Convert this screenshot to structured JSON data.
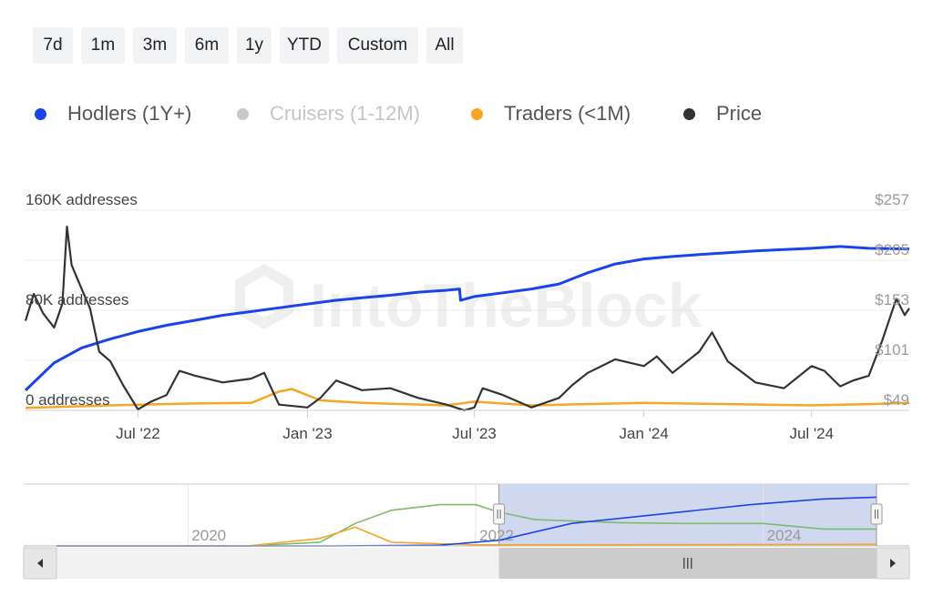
{
  "range_buttons": [
    "7d",
    "1m",
    "3m",
    "6m",
    "1y",
    "YTD",
    "Custom",
    "All"
  ],
  "legend": [
    {
      "label": "Hodlers (1Y+)",
      "color": "#1a44e8",
      "dim": false
    },
    {
      "label": "Cruisers (1-12M)",
      "color": "#c8c8c8",
      "dim": true
    },
    {
      "label": "Traders (<1M)",
      "color": "#f5a623",
      "dim": false
    },
    {
      "label": "Price",
      "color": "#333333",
      "dim": false
    }
  ],
  "watermark": "IntoTheBlock",
  "chart_data": {
    "type": "line",
    "x_ticks": [
      "Jul '22",
      "Jan '23",
      "Jul '23",
      "Jan '24",
      "Jul '24"
    ],
    "y_left_ticks": [
      "160K addresses",
      "80K addresses",
      "0 addresses"
    ],
    "y_right_ticks": [
      "$257",
      "$205",
      "$153",
      "$101",
      "$49"
    ],
    "y_left_range": [
      0,
      160000
    ],
    "y_right_range": [
      49,
      257
    ],
    "x_range": [
      "2022-03-01",
      "2024-10-15"
    ],
    "series": [
      {
        "name": "Hodlers (1Y+)",
        "axis": "left",
        "color": "#1a44e8",
        "points": [
          [
            "2022-03-01",
            16000
          ],
          [
            "2022-04-01",
            38000
          ],
          [
            "2022-05-01",
            50000
          ],
          [
            "2022-06-01",
            57000
          ],
          [
            "2022-07-01",
            63000
          ],
          [
            "2022-08-01",
            68000
          ],
          [
            "2022-09-01",
            72000
          ],
          [
            "2022-10-01",
            76000
          ],
          [
            "2022-11-01",
            79000
          ],
          [
            "2022-12-01",
            82000
          ],
          [
            "2023-01-01",
            85000
          ],
          [
            "2023-02-01",
            88000
          ],
          [
            "2023-03-01",
            90000
          ],
          [
            "2023-04-01",
            92000
          ],
          [
            "2023-05-01",
            94500
          ],
          [
            "2023-06-01",
            96000
          ],
          [
            "2023-06-15",
            97000
          ],
          [
            "2023-06-16",
            88000
          ],
          [
            "2023-07-01",
            91000
          ],
          [
            "2023-08-01",
            94000
          ],
          [
            "2023-09-01",
            97000
          ],
          [
            "2023-10-01",
            101000
          ],
          [
            "2023-11-01",
            110000
          ],
          [
            "2023-12-01",
            117000
          ],
          [
            "2024-01-01",
            121000
          ],
          [
            "2024-02-01",
            123000
          ],
          [
            "2024-03-01",
            124500
          ],
          [
            "2024-04-01",
            126000
          ],
          [
            "2024-05-01",
            127500
          ],
          [
            "2024-06-01",
            128500
          ],
          [
            "2024-07-01",
            129500
          ],
          [
            "2024-08-01",
            131000
          ],
          [
            "2024-09-01",
            129500
          ],
          [
            "2024-10-15",
            129000
          ]
        ]
      },
      {
        "name": "Traders (<1M)",
        "axis": "left",
        "color": "#f5a623",
        "points": [
          [
            "2022-03-01",
            2000
          ],
          [
            "2022-06-01",
            4000
          ],
          [
            "2022-09-01",
            5500
          ],
          [
            "2022-11-01",
            6000
          ],
          [
            "2022-12-01",
            15000
          ],
          [
            "2022-12-15",
            17000
          ],
          [
            "2023-01-15",
            8000
          ],
          [
            "2023-03-01",
            6000
          ],
          [
            "2023-06-01",
            4000
          ],
          [
            "2023-07-01",
            7000
          ],
          [
            "2023-09-01",
            4000
          ],
          [
            "2023-11-01",
            5000
          ],
          [
            "2024-01-01",
            6000
          ],
          [
            "2024-04-01",
            5000
          ],
          [
            "2024-07-01",
            4000
          ],
          [
            "2024-09-01",
            5000
          ],
          [
            "2024-10-15",
            6000
          ]
        ]
      },
      {
        "name": "Price",
        "axis": "right",
        "color": "#333333",
        "points": [
          [
            "2022-03-01",
            142
          ],
          [
            "2022-03-10",
            170
          ],
          [
            "2022-03-20",
            150
          ],
          [
            "2022-04-01",
            135
          ],
          [
            "2022-04-10",
            160
          ],
          [
            "2022-04-15",
            240
          ],
          [
            "2022-04-20",
            200
          ],
          [
            "2022-05-01",
            175
          ],
          [
            "2022-05-10",
            155
          ],
          [
            "2022-05-20",
            110
          ],
          [
            "2022-06-01",
            100
          ],
          [
            "2022-06-15",
            75
          ],
          [
            "2022-07-01",
            50
          ],
          [
            "2022-07-15",
            58
          ],
          [
            "2022-08-01",
            65
          ],
          [
            "2022-08-15",
            90
          ],
          [
            "2022-09-01",
            85
          ],
          [
            "2022-10-01",
            78
          ],
          [
            "2022-11-01",
            82
          ],
          [
            "2022-11-15",
            88
          ],
          [
            "2022-12-01",
            55
          ],
          [
            "2023-01-01",
            52
          ],
          [
            "2023-01-15",
            62
          ],
          [
            "2023-02-01",
            80
          ],
          [
            "2023-03-01",
            70
          ],
          [
            "2023-04-01",
            72
          ],
          [
            "2023-05-01",
            62
          ],
          [
            "2023-06-01",
            55
          ],
          [
            "2023-06-20",
            49
          ],
          [
            "2023-07-01",
            52
          ],
          [
            "2023-07-10",
            72
          ],
          [
            "2023-08-01",
            65
          ],
          [
            "2023-09-01",
            52
          ],
          [
            "2023-10-01",
            62
          ],
          [
            "2023-10-15",
            75
          ],
          [
            "2023-11-01",
            88
          ],
          [
            "2023-12-01",
            102
          ],
          [
            "2024-01-01",
            95
          ],
          [
            "2024-01-15",
            105
          ],
          [
            "2024-02-01",
            88
          ],
          [
            "2024-03-01",
            110
          ],
          [
            "2024-03-15",
            130
          ],
          [
            "2024-04-01",
            100
          ],
          [
            "2024-05-01",
            78
          ],
          [
            "2024-06-01",
            72
          ],
          [
            "2024-07-01",
            95
          ],
          [
            "2024-07-15",
            90
          ],
          [
            "2024-08-01",
            74
          ],
          [
            "2024-08-15",
            80
          ],
          [
            "2024-09-01",
            85
          ],
          [
            "2024-09-15",
            120
          ],
          [
            "2024-10-01",
            165
          ],
          [
            "2024-10-10",
            148
          ],
          [
            "2024-10-15",
            155
          ]
        ]
      }
    ]
  },
  "navigator": {
    "year_labels": [
      {
        "label": "2020",
        "date": "2020-01-01"
      },
      {
        "label": "2022",
        "date": "2022-01-01"
      },
      {
        "label": "2024",
        "date": "2024-01-01"
      }
    ],
    "x_range": [
      "2019-02-01",
      "2024-10-15"
    ],
    "y_range": [
      0,
      160000
    ],
    "selected_range": [
      "2022-03-01",
      "2024-10-15"
    ],
    "series": [
      {
        "name": "Cruisers (1-12M)",
        "color": "#7dbb6b",
        "points": [
          [
            "2019-02-01",
            0
          ],
          [
            "2020-06-01",
            0
          ],
          [
            "2020-12-01",
            10000
          ],
          [
            "2021-03-01",
            60000
          ],
          [
            "2021-06-01",
            95000
          ],
          [
            "2021-10-01",
            110000
          ],
          [
            "2022-01-01",
            110000
          ],
          [
            "2022-03-01",
            90000
          ],
          [
            "2022-06-01",
            70000
          ],
          [
            "2023-01-01",
            62000
          ],
          [
            "2023-06-01",
            60000
          ],
          [
            "2024-01-01",
            60000
          ],
          [
            "2024-06-01",
            45000
          ],
          [
            "2024-10-15",
            45000
          ]
        ]
      },
      {
        "name": "Traders (<1M)",
        "color": "#f5a623",
        "points": [
          [
            "2019-02-01",
            0
          ],
          [
            "2020-06-01",
            0
          ],
          [
            "2020-12-01",
            20000
          ],
          [
            "2021-03-01",
            50000
          ],
          [
            "2021-06-01",
            10000
          ],
          [
            "2022-01-01",
            3000
          ],
          [
            "2024-10-15",
            4000
          ]
        ]
      },
      {
        "name": "Hodlers (1Y+)",
        "color": "#1a44e8",
        "points": [
          [
            "2019-02-01",
            0
          ],
          [
            "2021-01-01",
            0
          ],
          [
            "2021-10-01",
            2000
          ],
          [
            "2022-03-01",
            15000
          ],
          [
            "2022-09-01",
            60000
          ],
          [
            "2023-06-01",
            90000
          ],
          [
            "2023-12-01",
            110000
          ],
          [
            "2024-06-01",
            125000
          ],
          [
            "2024-10-15",
            130000
          ]
        ]
      }
    ]
  }
}
